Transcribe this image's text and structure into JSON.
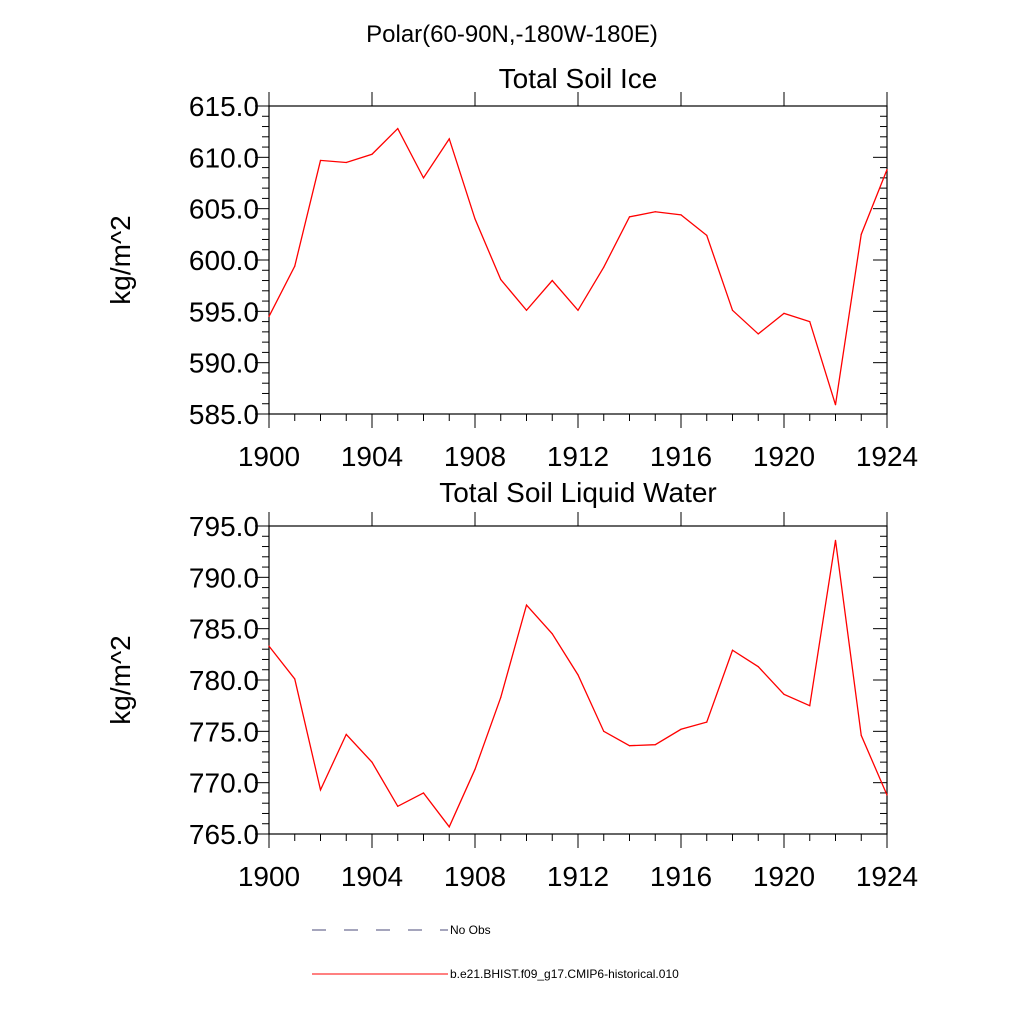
{
  "figure": {
    "suptitle": "Polar(60-90N,-180W-180E)"
  },
  "chart_data": [
    {
      "type": "line",
      "title": "Total Soil Ice",
      "xlabel": "",
      "ylabel": "kg/m^2",
      "xlim": [
        1900,
        1924
      ],
      "ylim": [
        585,
        615
      ],
      "xticks": [
        "1900",
        "1904",
        "1908",
        "1912",
        "1916",
        "1920",
        "1924"
      ],
      "yticks": [
        "585.0",
        "590.0",
        "595.0",
        "600.0",
        "605.0",
        "610.0",
        "615.0"
      ],
      "grid": false,
      "x": [
        1900,
        1901,
        1902,
        1903,
        1904,
        1905,
        1906,
        1907,
        1908,
        1909,
        1910,
        1911,
        1912,
        1913,
        1914,
        1915,
        1916,
        1917,
        1918,
        1919,
        1920,
        1921,
        1922,
        1923,
        1924
      ],
      "series": [
        {
          "name": "b.e21.BHIST.f09_g17.CMIP6-historical.010",
          "color": "#ff0000",
          "values": [
            594.5,
            599.4,
            609.7,
            609.5,
            610.3,
            612.8,
            608.0,
            611.8,
            604.0,
            598.1,
            595.1,
            598.0,
            595.1,
            599.3,
            604.2,
            604.7,
            604.4,
            602.4,
            595.1,
            592.8,
            594.8,
            594.0,
            585.9,
            602.5,
            608.8
          ]
        }
      ]
    },
    {
      "type": "line",
      "title": "Total Soil Liquid Water",
      "xlabel": "",
      "ylabel": "kg/m^2",
      "xlim": [
        1900,
        1924
      ],
      "ylim": [
        765,
        795
      ],
      "xticks": [
        "1900",
        "1904",
        "1908",
        "1912",
        "1916",
        "1920",
        "1924"
      ],
      "yticks": [
        "765.0",
        "770.0",
        "775.0",
        "780.0",
        "785.0",
        "790.0",
        "795.0"
      ],
      "grid": false,
      "x": [
        1900,
        1901,
        1902,
        1903,
        1904,
        1905,
        1906,
        1907,
        1908,
        1909,
        1910,
        1911,
        1912,
        1913,
        1914,
        1915,
        1916,
        1917,
        1918,
        1919,
        1920,
        1921,
        1922,
        1923,
        1924
      ],
      "series": [
        {
          "name": "b.e21.BHIST.f09_g17.CMIP6-historical.010",
          "color": "#ff0000",
          "values": [
            783.3,
            780.1,
            769.3,
            774.7,
            772.0,
            767.7,
            769.0,
            765.7,
            771.3,
            778.3,
            787.3,
            784.5,
            780.5,
            775.0,
            773.6,
            773.7,
            775.2,
            775.9,
            782.9,
            781.3,
            778.6,
            777.5,
            793.6,
            774.6,
            768.8
          ]
        }
      ]
    }
  ],
  "legend": {
    "items": [
      {
        "label": "No Obs",
        "color": "#4b4b7a",
        "style": "dashed"
      },
      {
        "label": "b.e21.BHIST.f09_g17.CMIP6-historical.010",
        "color": "#ff0000",
        "style": "solid"
      }
    ]
  }
}
